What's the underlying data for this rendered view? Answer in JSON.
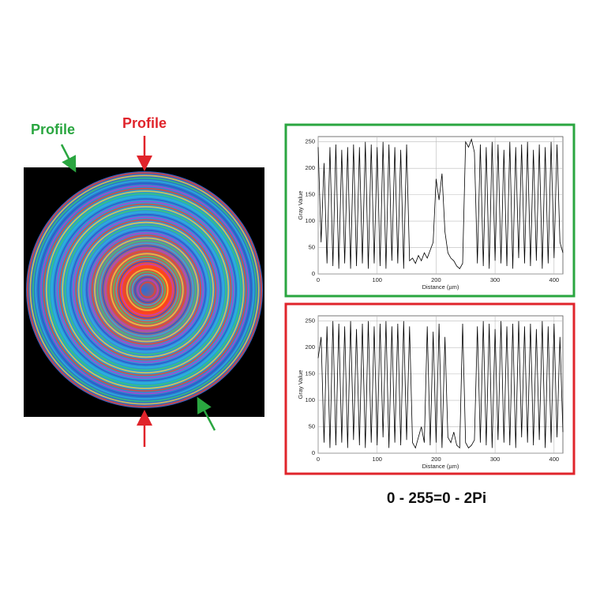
{
  "annotations": {
    "left_label": "Profile",
    "top_label": "Profile",
    "caption": "0 - 255=0 - 2Pi"
  },
  "chart_data": [
    {
      "type": "line",
      "border_color": "#2aa640",
      "xlabel": "Distance (µm)",
      "ylabel": "Gray Value",
      "xlim": [
        0,
        415
      ],
      "xticks": [
        0,
        100,
        200,
        300,
        400
      ],
      "ylim": [
        0,
        260
      ],
      "yticks": [
        0,
        50,
        100,
        150,
        200,
        250
      ],
      "grid": true,
      "color": "#000000",
      "x": [
        0,
        5,
        10,
        15,
        20,
        25,
        30,
        35,
        40,
        45,
        50,
        55,
        60,
        65,
        70,
        75,
        80,
        85,
        90,
        95,
        100,
        105,
        110,
        115,
        120,
        125,
        130,
        135,
        140,
        145,
        150,
        155,
        160,
        165,
        170,
        175,
        180,
        185,
        190,
        195,
        200,
        205,
        210,
        215,
        220,
        225,
        230,
        235,
        240,
        245,
        250,
        255,
        260,
        265,
        270,
        275,
        280,
        285,
        290,
        295,
        300,
        305,
        310,
        315,
        320,
        325,
        330,
        335,
        340,
        345,
        350,
        355,
        360,
        365,
        370,
        375,
        380,
        385,
        390,
        395,
        400,
        405,
        410,
        415
      ],
      "values": [
        240,
        60,
        210,
        20,
        240,
        15,
        245,
        10,
        235,
        20,
        240,
        10,
        245,
        15,
        240,
        20,
        250,
        10,
        245,
        20,
        240,
        15,
        250,
        10,
        245,
        25,
        240,
        20,
        235,
        10,
        245,
        25,
        30,
        20,
        35,
        25,
        40,
        30,
        45,
        60,
        180,
        140,
        190,
        80,
        40,
        30,
        25,
        15,
        10,
        20,
        250,
        240,
        255,
        230,
        20,
        245,
        15,
        240,
        10,
        250,
        25,
        245,
        20,
        235,
        15,
        250,
        10,
        240,
        30,
        245,
        20,
        250,
        15,
        235,
        25,
        245,
        10,
        240,
        20,
        250,
        30,
        245,
        60,
        40
      ]
    },
    {
      "type": "line",
      "border_color": "#e0242b",
      "xlabel": "Distance (µm)",
      "ylabel": "Gray Value",
      "xlim": [
        0,
        415
      ],
      "xticks": [
        0,
        100,
        200,
        300,
        400
      ],
      "ylim": [
        0,
        260
      ],
      "yticks": [
        0,
        50,
        100,
        150,
        200,
        250
      ],
      "grid": true,
      "color": "#000000",
      "x": [
        0,
        5,
        10,
        15,
        20,
        25,
        30,
        35,
        40,
        45,
        50,
        55,
        60,
        65,
        70,
        75,
        80,
        85,
        90,
        95,
        100,
        105,
        110,
        115,
        120,
        125,
        130,
        135,
        140,
        145,
        150,
        155,
        160,
        165,
        170,
        175,
        180,
        185,
        190,
        195,
        200,
        205,
        210,
        215,
        220,
        225,
        230,
        235,
        240,
        245,
        250,
        255,
        260,
        265,
        270,
        275,
        280,
        285,
        290,
        295,
        300,
        305,
        310,
        315,
        320,
        325,
        330,
        335,
        340,
        345,
        350,
        355,
        360,
        365,
        370,
        375,
        380,
        385,
        390,
        395,
        400,
        405,
        410,
        415
      ],
      "values": [
        180,
        220,
        20,
        240,
        10,
        250,
        15,
        245,
        20,
        240,
        10,
        250,
        25,
        235,
        15,
        245,
        10,
        250,
        20,
        240,
        15,
        245,
        30,
        250,
        10,
        240,
        20,
        245,
        15,
        250,
        25,
        240,
        20,
        10,
        30,
        50,
        20,
        240,
        15,
        230,
        20,
        245,
        10,
        220,
        30,
        20,
        40,
        15,
        10,
        245,
        20,
        10,
        15,
        25,
        240,
        20,
        250,
        15,
        245,
        10,
        235,
        25,
        250,
        20,
        240,
        15,
        245,
        10,
        250,
        30,
        240,
        20,
        245,
        15,
        235,
        25,
        250,
        10,
        240,
        20,
        245,
        30,
        220,
        40
      ]
    }
  ]
}
